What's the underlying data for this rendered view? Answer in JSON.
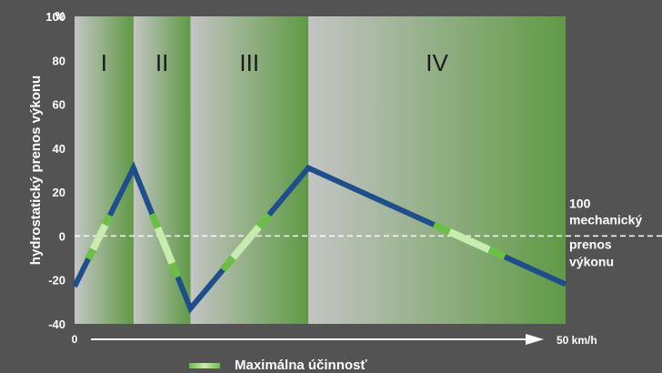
{
  "chart_data": {
    "type": "line",
    "ylabel": "hydrostatický prenos výkonu",
    "yunit": "%",
    "ylim": [
      -40,
      100
    ],
    "yticks": [
      100,
      80,
      60,
      40,
      20,
      0,
      -20,
      -40
    ],
    "xlim": [
      0,
      50
    ],
    "xaxis_start_label": "0",
    "xaxis_end_label": "50 km/h",
    "phases": [
      {
        "label": "I",
        "x_start": 0,
        "x_end": 6
      },
      {
        "label": "II",
        "x_start": 6,
        "x_end": 11.8
      },
      {
        "label": "III",
        "x_start": 11.8,
        "x_end": 23.8
      },
      {
        "label": "IV",
        "x_start": 23.8,
        "x_end": 50
      }
    ],
    "series": [
      {
        "x": [
          0,
          6,
          11.8,
          23.8,
          50
        ],
        "y": [
          -23,
          31,
          -33,
          31,
          -22
        ],
        "color": "#1f4e8c"
      }
    ],
    "max_efficiency_segments": [
      {
        "x": [
          1.4,
          3.6
        ]
      },
      {
        "x": [
          7.9,
          10.5
        ]
      },
      {
        "x": [
          15.1,
          19.8
        ]
      },
      {
        "x": [
          36.6,
          43.8
        ]
      }
    ],
    "reference_line": {
      "y": 0,
      "style": "dashed",
      "label_lines": [
        "100",
        "mechanický",
        "prenos",
        "výkonu"
      ]
    },
    "legend": {
      "label": "Maximálna účinnosť",
      "placement": "bottom"
    },
    "colors": {
      "background": "#535353",
      "series": "#1f4e8c",
      "phase_gray": "#c4c4c4",
      "phase_green": "#5f9a45",
      "highlight_light": "#c8ecb0",
      "highlight_dark": "#6bbf44"
    }
  }
}
